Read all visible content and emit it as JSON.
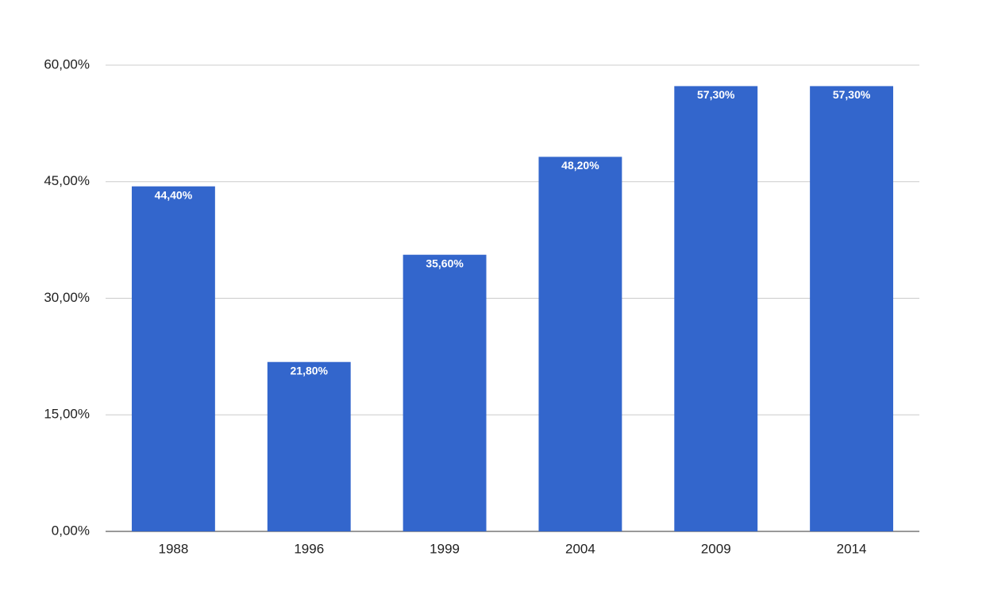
{
  "chart_data": {
    "type": "bar",
    "categories": [
      "1988",
      "1996",
      "1999",
      "2004",
      "2009",
      "2014"
    ],
    "values": [
      44.4,
      21.8,
      35.6,
      48.2,
      57.3,
      57.3
    ],
    "value_labels": [
      "44,40%",
      "21,80%",
      "35,60%",
      "48,20%",
      "57,30%",
      "57,30%"
    ],
    "color": "#3366cc",
    "ylim": [
      0,
      60
    ],
    "yticks": [
      {
        "value": 0,
        "label": "0,00%"
      },
      {
        "value": 15,
        "label": "15,00%"
      },
      {
        "value": 30,
        "label": "30,00%"
      },
      {
        "value": 45,
        "label": "45,00%"
      },
      {
        "value": 60,
        "label": "60,00%"
      }
    ],
    "grid": true
  }
}
